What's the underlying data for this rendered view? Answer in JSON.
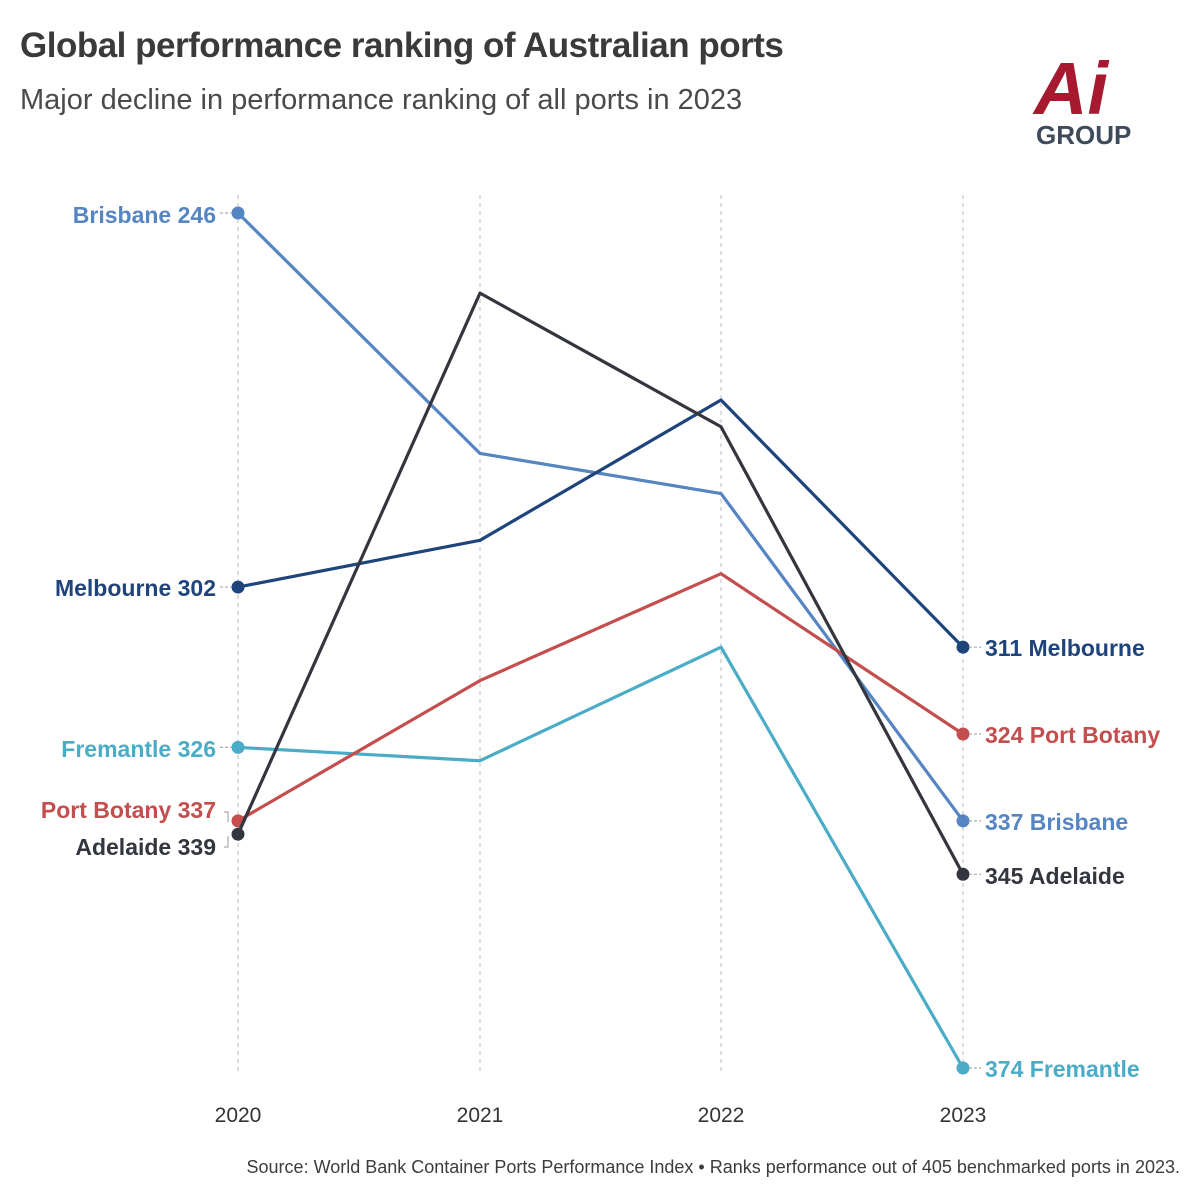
{
  "chart_data": {
    "type": "line",
    "title": "Global performance ranking of Australian ports",
    "subtitle": "Major decline in performance ranking of all ports in 2023",
    "x": [
      "2020",
      "2021",
      "2022",
      "2023"
    ],
    "ylim": [
      248,
      374
    ],
    "y_inverted": true,
    "series": [
      {
        "name": "Brisbane",
        "color": "#5585c2",
        "values": [
          246,
          282,
          288,
          337
        ],
        "start_label": "Brisbane 246",
        "end_label": "337 Brisbane"
      },
      {
        "name": "Melbourne",
        "color": "#1f447c",
        "values": [
          302,
          295,
          274,
          311
        ],
        "start_label": "Melbourne 302",
        "end_label": "311 Melbourne"
      },
      {
        "name": "Fremantle",
        "color": "#4aacc6",
        "values": [
          326,
          328,
          311,
          374
        ],
        "start_label": "Fremantle 326",
        "end_label": "374 Fremantle"
      },
      {
        "name": "Port Botany",
        "color": "#c44d4d",
        "values": [
          337,
          316,
          300,
          324
        ],
        "start_label": "Port Botany 337",
        "end_label": "324 Port Botany"
      },
      {
        "name": "Adelaide",
        "color": "#33353f",
        "values": [
          339,
          258,
          278,
          345
        ],
        "start_label": "Adelaide 339",
        "end_label": "345 Adelaide"
      }
    ],
    "source": "Source: World Bank Container Ports Performance Index • Ranks performance out of 405 benchmarked ports in 2023."
  },
  "logo": {
    "mark": "Ai",
    "text": "GROUP",
    "color_red": "#a6192e",
    "color_dark": "#3d4b5c"
  }
}
